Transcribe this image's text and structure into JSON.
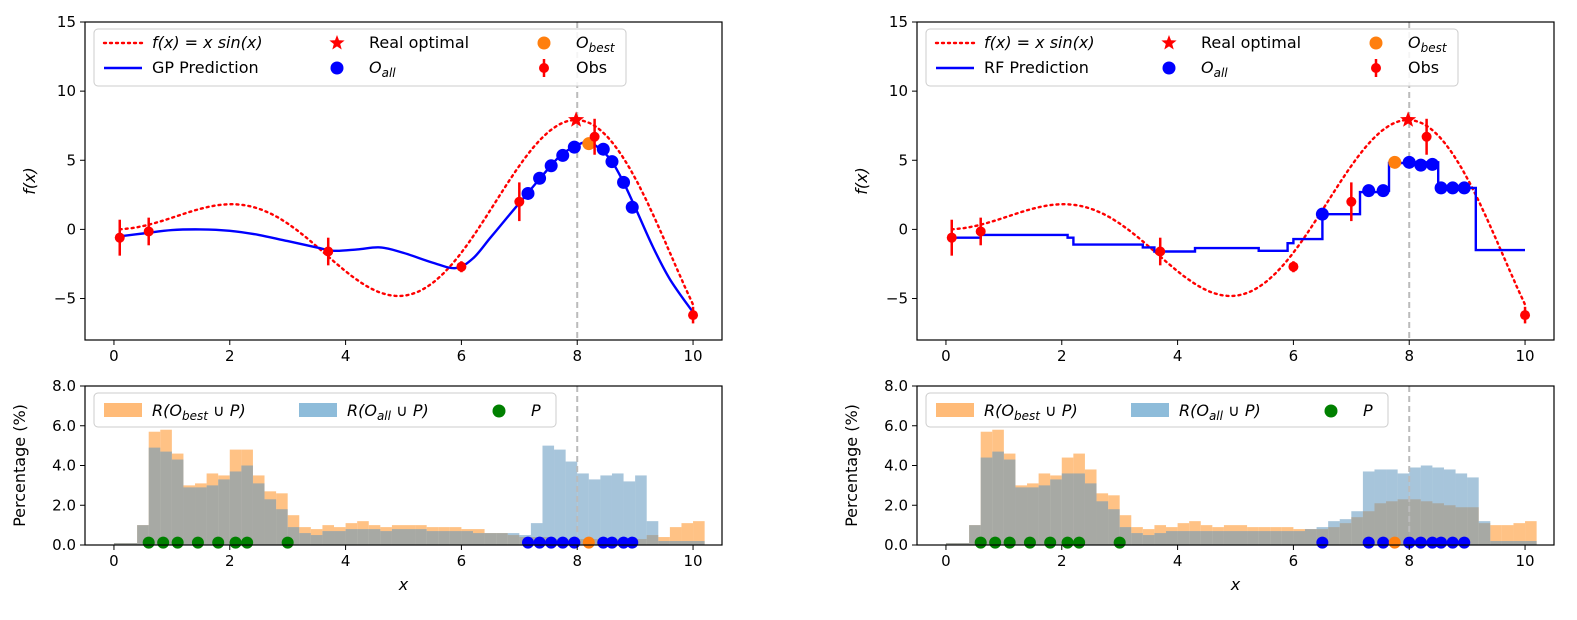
{
  "chart_data": [
    {
      "id": "left",
      "type": "line",
      "title": "",
      "xlabel": "",
      "ylabel": "f(x)",
      "xlim": [
        -0.5,
        10.5
      ],
      "ylim": [
        -8,
        15
      ],
      "xticks": [
        "0",
        "2",
        "4",
        "6",
        "8",
        "10"
      ],
      "yticks": [
        "−5",
        "0",
        "5",
        "10",
        "15"
      ],
      "legend": {
        "true_fn": "f(x) = x sin(x)",
        "prediction": "GP Prediction",
        "real_optimal": "Real optimal",
        "o_all": "O_all",
        "o_best": "O_best",
        "obs": "Obs"
      },
      "optimum": {
        "x": 7.98,
        "y": 7.92
      },
      "observations": [
        {
          "x": 0.1,
          "y": -0.6,
          "err": 1.3
        },
        {
          "x": 0.6,
          "y": -0.15,
          "err": 1.0
        },
        {
          "x": 3.7,
          "y": -1.6,
          "err": 1.0
        },
        {
          "x": 6.0,
          "y": -2.7,
          "err": 0.4
        },
        {
          "x": 7.0,
          "y": 2.0,
          "err": 1.4
        },
        {
          "x": 8.3,
          "y": 6.7,
          "err": 1.3
        },
        {
          "x": 10.0,
          "y": -6.2,
          "err": 0.6
        }
      ],
      "prediction_points": [
        [
          0.1,
          -0.5
        ],
        [
          0.5,
          -0.3
        ],
        [
          1.0,
          -0.05
        ],
        [
          1.5,
          0.0
        ],
        [
          2.0,
          -0.1
        ],
        [
          2.5,
          -0.4
        ],
        [
          3.0,
          -0.85
        ],
        [
          3.5,
          -1.3
        ],
        [
          3.8,
          -1.55
        ],
        [
          4.2,
          -1.45
        ],
        [
          4.6,
          -1.3
        ],
        [
          5.0,
          -1.7
        ],
        [
          5.5,
          -2.4
        ],
        [
          5.9,
          -2.8
        ],
        [
          6.2,
          -2.1
        ],
        [
          6.5,
          -0.6
        ],
        [
          6.8,
          0.9
        ],
        [
          7.1,
          2.4
        ],
        [
          7.4,
          3.9
        ],
        [
          7.7,
          5.3
        ],
        [
          8.0,
          6.1
        ],
        [
          8.2,
          6.3
        ],
        [
          8.4,
          5.8
        ],
        [
          8.6,
          4.9
        ],
        [
          8.8,
          3.4
        ],
        [
          9.0,
          1.6
        ],
        [
          9.3,
          -1.2
        ],
        [
          9.6,
          -3.6
        ],
        [
          10.0,
          -6.0
        ]
      ],
      "o_all": [
        [
          7.15,
          2.6
        ],
        [
          7.35,
          3.7
        ],
        [
          7.55,
          4.6
        ],
        [
          7.75,
          5.35
        ],
        [
          7.95,
          5.95
        ],
        [
          8.45,
          5.8
        ],
        [
          8.6,
          4.9
        ],
        [
          8.8,
          3.4
        ],
        [
          8.95,
          1.6
        ]
      ],
      "o_best": {
        "x": 8.2,
        "y": 6.2
      },
      "vline_x": 8.0
    },
    {
      "id": "right",
      "type": "line",
      "title": "",
      "xlabel": "",
      "ylabel": "f(x)",
      "xlim": [
        -0.5,
        10.5
      ],
      "ylim": [
        -8,
        15
      ],
      "xticks": [
        "0",
        "2",
        "4",
        "6",
        "8",
        "10"
      ],
      "yticks": [
        "−5",
        "0",
        "5",
        "10",
        "15"
      ],
      "legend": {
        "true_fn": "f(x) = x sin(x)",
        "prediction": "RF Prediction",
        "real_optimal": "Real optimal",
        "o_all": "O_all",
        "o_best": "O_best",
        "obs": "Obs"
      },
      "optimum": {
        "x": 7.98,
        "y": 7.92
      },
      "observations": [
        {
          "x": 0.1,
          "y": -0.6,
          "err": 1.3
        },
        {
          "x": 0.6,
          "y": -0.15,
          "err": 1.0
        },
        {
          "x": 3.7,
          "y": -1.6,
          "err": 1.0
        },
        {
          "x": 6.0,
          "y": -2.7,
          "err": 0.4
        },
        {
          "x": 7.0,
          "y": 2.0,
          "err": 1.4
        },
        {
          "x": 8.3,
          "y": 6.7,
          "err": 1.3
        },
        {
          "x": 10.0,
          "y": -6.2,
          "err": 0.6
        }
      ],
      "prediction_steps": [
        [
          0.1,
          -0.6
        ],
        [
          0.6,
          -0.4
        ],
        [
          2.1,
          -0.6
        ],
        [
          2.2,
          -1.1
        ],
        [
          3.4,
          -1.3
        ],
        [
          3.6,
          -1.6
        ],
        [
          4.3,
          -1.35
        ],
        [
          5.4,
          -1.55
        ],
        [
          5.9,
          -1.0
        ],
        [
          6.0,
          -0.7
        ],
        [
          6.5,
          1.1
        ],
        [
          6.8,
          1.1
        ],
        [
          7.15,
          2.7
        ],
        [
          7.6,
          2.8
        ],
        [
          7.65,
          4.8
        ],
        [
          7.95,
          4.85
        ],
        [
          8.5,
          3.0
        ],
        [
          9.05,
          3.0
        ],
        [
          9.15,
          -1.5
        ],
        [
          10.0,
          -1.5
        ]
      ],
      "o_all": [
        [
          6.5,
          1.1
        ],
        [
          7.3,
          2.8
        ],
        [
          7.55,
          2.8
        ],
        [
          8.0,
          4.85
        ],
        [
          8.2,
          4.65
        ],
        [
          8.4,
          4.7
        ],
        [
          8.55,
          3.0
        ],
        [
          8.75,
          3.0
        ],
        [
          8.95,
          3.0
        ]
      ],
      "o_best": {
        "x": 7.75,
        "y": 4.85
      },
      "vline_x": 8.0
    },
    {
      "id": "left-hist",
      "type": "bar",
      "xlabel": "x",
      "ylabel": "Percentage (%)",
      "xlim": [
        -0.5,
        10.5
      ],
      "ylim": [
        0,
        8
      ],
      "xticks": [
        "0",
        "2",
        "4",
        "6",
        "8",
        "10"
      ],
      "yticks": [
        "0.0",
        "2.0",
        "4.0",
        "6.0",
        "8.0"
      ],
      "legend": {
        "best": "R(O_best ∪ P)",
        "all": "R(O_all ∪ P)",
        "p": "P"
      },
      "bin_start": 0.0,
      "bin_width": 0.2,
      "series": [
        {
          "name": "R(O_best ∪ P)",
          "values": [
            0.1,
            0.1,
            1.0,
            5.7,
            5.8,
            4.6,
            3.0,
            3.1,
            3.6,
            3.5,
            4.8,
            4.8,
            3.5,
            2.7,
            2.6,
            1.5,
            0.9,
            0.8,
            1.0,
            0.9,
            1.1,
            1.2,
            1.0,
            0.9,
            1.0,
            1.0,
            1.0,
            0.9,
            0.9,
            0.9,
            0.8,
            0.8,
            0.6,
            0.6,
            0.5,
            0.4,
            0.4,
            0.4,
            0.3,
            0.3,
            0.3,
            0.3,
            0.3,
            0.3,
            0.2,
            0.3,
            0.5,
            0.4,
            0.9,
            1.1,
            1.2
          ]
        },
        {
          "name": "R(O_all ∪ P)",
          "values": [
            0.1,
            0.1,
            1.0,
            4.9,
            4.7,
            4.3,
            2.9,
            2.9,
            3.0,
            3.3,
            3.7,
            4.0,
            3.1,
            2.3,
            1.8,
            0.9,
            0.6,
            0.5,
            0.7,
            0.7,
            0.8,
            0.8,
            0.8,
            0.7,
            0.8,
            0.8,
            0.8,
            0.7,
            0.7,
            0.7,
            0.7,
            0.6,
            0.6,
            0.6,
            0.6,
            0.5,
            1.1,
            5.0,
            4.8,
            4.2,
            3.6,
            3.3,
            3.5,
            3.6,
            3.2,
            3.5,
            1.2,
            0.2,
            0.2,
            0.2,
            0.2
          ]
        },
        {
          "name": "P",
          "values": [
            0.6,
            0.85,
            1.1,
            1.45,
            1.8,
            2.1,
            2.3,
            3.0
          ]
        }
      ],
      "o_all": [
        7.15,
        7.35,
        7.55,
        7.75,
        7.95,
        8.45,
        8.6,
        8.8,
        8.95
      ],
      "o_best": 8.2,
      "vline_x": 8.0
    },
    {
      "id": "right-hist",
      "type": "bar",
      "xlabel": "x",
      "ylabel": "Percentage (%)",
      "xlim": [
        -0.5,
        10.5
      ],
      "ylim": [
        0,
        8
      ],
      "xticks": [
        "0",
        "2",
        "4",
        "6",
        "8",
        "10"
      ],
      "yticks": [
        "0.0",
        "2.0",
        "4.0",
        "6.0",
        "8.0"
      ],
      "legend": {
        "best": "R(O_best ∪ P)",
        "all": "R(O_all ∪ P)",
        "p": "P"
      },
      "bin_start": 0.0,
      "bin_width": 0.2,
      "series": [
        {
          "name": "R(O_best ∪ P)",
          "values": [
            0.1,
            0.1,
            1.0,
            5.7,
            5.8,
            4.6,
            3.0,
            3.1,
            3.6,
            3.5,
            4.4,
            4.6,
            3.8,
            2.6,
            2.5,
            1.5,
            0.9,
            0.8,
            1.0,
            0.9,
            1.1,
            1.2,
            1.0,
            0.9,
            1.0,
            1.0,
            0.9,
            0.9,
            0.9,
            0.9,
            0.8,
            0.8,
            0.8,
            0.9,
            1.1,
            1.4,
            1.7,
            2.1,
            2.2,
            2.3,
            2.3,
            2.2,
            2.1,
            2.0,
            1.9,
            1.9,
            1.1,
            1.0,
            1.0,
            1.1,
            1.2
          ]
        },
        {
          "name": "R(O_all ∪ P)",
          "values": [
            0.1,
            0.1,
            1.0,
            4.4,
            4.7,
            4.3,
            2.9,
            2.9,
            3.0,
            3.3,
            3.6,
            3.6,
            3.1,
            2.2,
            1.8,
            0.9,
            0.6,
            0.5,
            0.6,
            0.7,
            0.7,
            0.7,
            0.7,
            0.7,
            0.7,
            0.7,
            0.7,
            0.7,
            0.7,
            0.7,
            0.7,
            0.8,
            0.9,
            1.2,
            1.3,
            1.7,
            3.7,
            3.8,
            3.8,
            3.6,
            3.9,
            4.0,
            3.9,
            3.8,
            3.6,
            3.4,
            1.2,
            0.2,
            0.2,
            0.2,
            0.2
          ]
        },
        {
          "name": "P",
          "values": [
            0.6,
            0.85,
            1.1,
            1.45,
            1.8,
            2.1,
            2.3,
            3.0
          ]
        }
      ],
      "o_all": [
        6.5,
        7.3,
        7.55,
        8.0,
        8.2,
        8.4,
        8.55,
        8.75,
        8.95
      ],
      "o_best": 7.75,
      "vline_x": 8.0
    }
  ]
}
